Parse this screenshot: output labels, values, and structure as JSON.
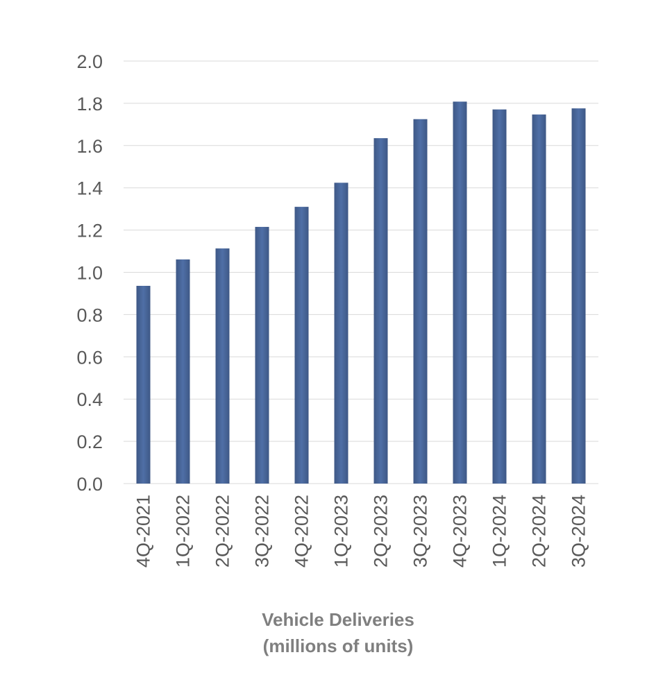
{
  "chart_data": {
    "type": "bar",
    "title": "Vehicle Deliveries",
    "subtitle": "(millions of units)",
    "title_position": "bottom",
    "xlabel": "",
    "ylabel": "",
    "categories": [
      "4Q-2021",
      "1Q-2022",
      "2Q-2022",
      "3Q-2022",
      "4Q-2022",
      "1Q-2023",
      "2Q-2023",
      "3Q-2023",
      "4Q-2023",
      "1Q-2024",
      "2Q-2024",
      "3Q-2024"
    ],
    "series": [
      {
        "name": "Vehicle Deliveries",
        "values": [
          0.936,
          1.061,
          1.113,
          1.215,
          1.31,
          1.424,
          1.635,
          1.725,
          1.808,
          1.771,
          1.747,
          1.776
        ]
      }
    ],
    "ylim": [
      0,
      2.0
    ],
    "y_ticks": [
      "0.0",
      "0.2",
      "0.4",
      "0.6",
      "0.8",
      "1.0",
      "1.2",
      "1.4",
      "1.6",
      "1.8",
      "2.0"
    ],
    "grid": true,
    "legend": "none",
    "colors": {
      "bar_edge": "#3e5886",
      "bar_center": "#4f6fa6",
      "grid": "#d9d9d9",
      "axis_text": "#595959",
      "title_text": "#7f7f7f"
    }
  }
}
